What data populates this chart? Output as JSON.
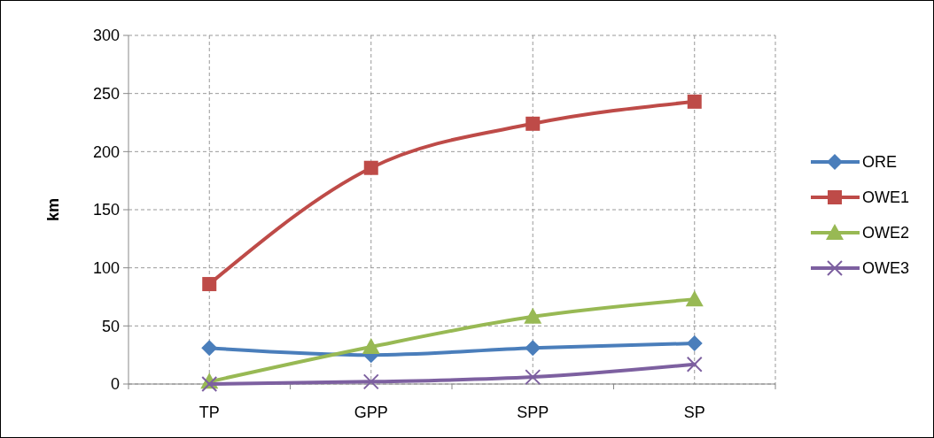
{
  "chart_data": {
    "type": "line",
    "ylabel": "km",
    "categories": [
      "TP",
      "GPP",
      "SPP",
      "SP"
    ],
    "series": [
      {
        "name": "ORE",
        "color": "#4a7ebb",
        "marker": "diamond",
        "values": [
          31,
          25,
          31,
          35
        ]
      },
      {
        "name": "OWE1",
        "color": "#be4b48",
        "marker": "square",
        "values": [
          86,
          186,
          224,
          243
        ]
      },
      {
        "name": "OWE2",
        "color": "#98b954",
        "marker": "triangle",
        "values": [
          2,
          32,
          58,
          73
        ]
      },
      {
        "name": "OWE3",
        "color": "#7d60a0",
        "marker": "cross",
        "values": [
          0,
          2,
          6,
          17
        ]
      }
    ],
    "ylim": [
      0,
      300
    ],
    "yticks": [
      0,
      50,
      100,
      150,
      200,
      250,
      300
    ],
    "grid": true,
    "legend": "right"
  }
}
